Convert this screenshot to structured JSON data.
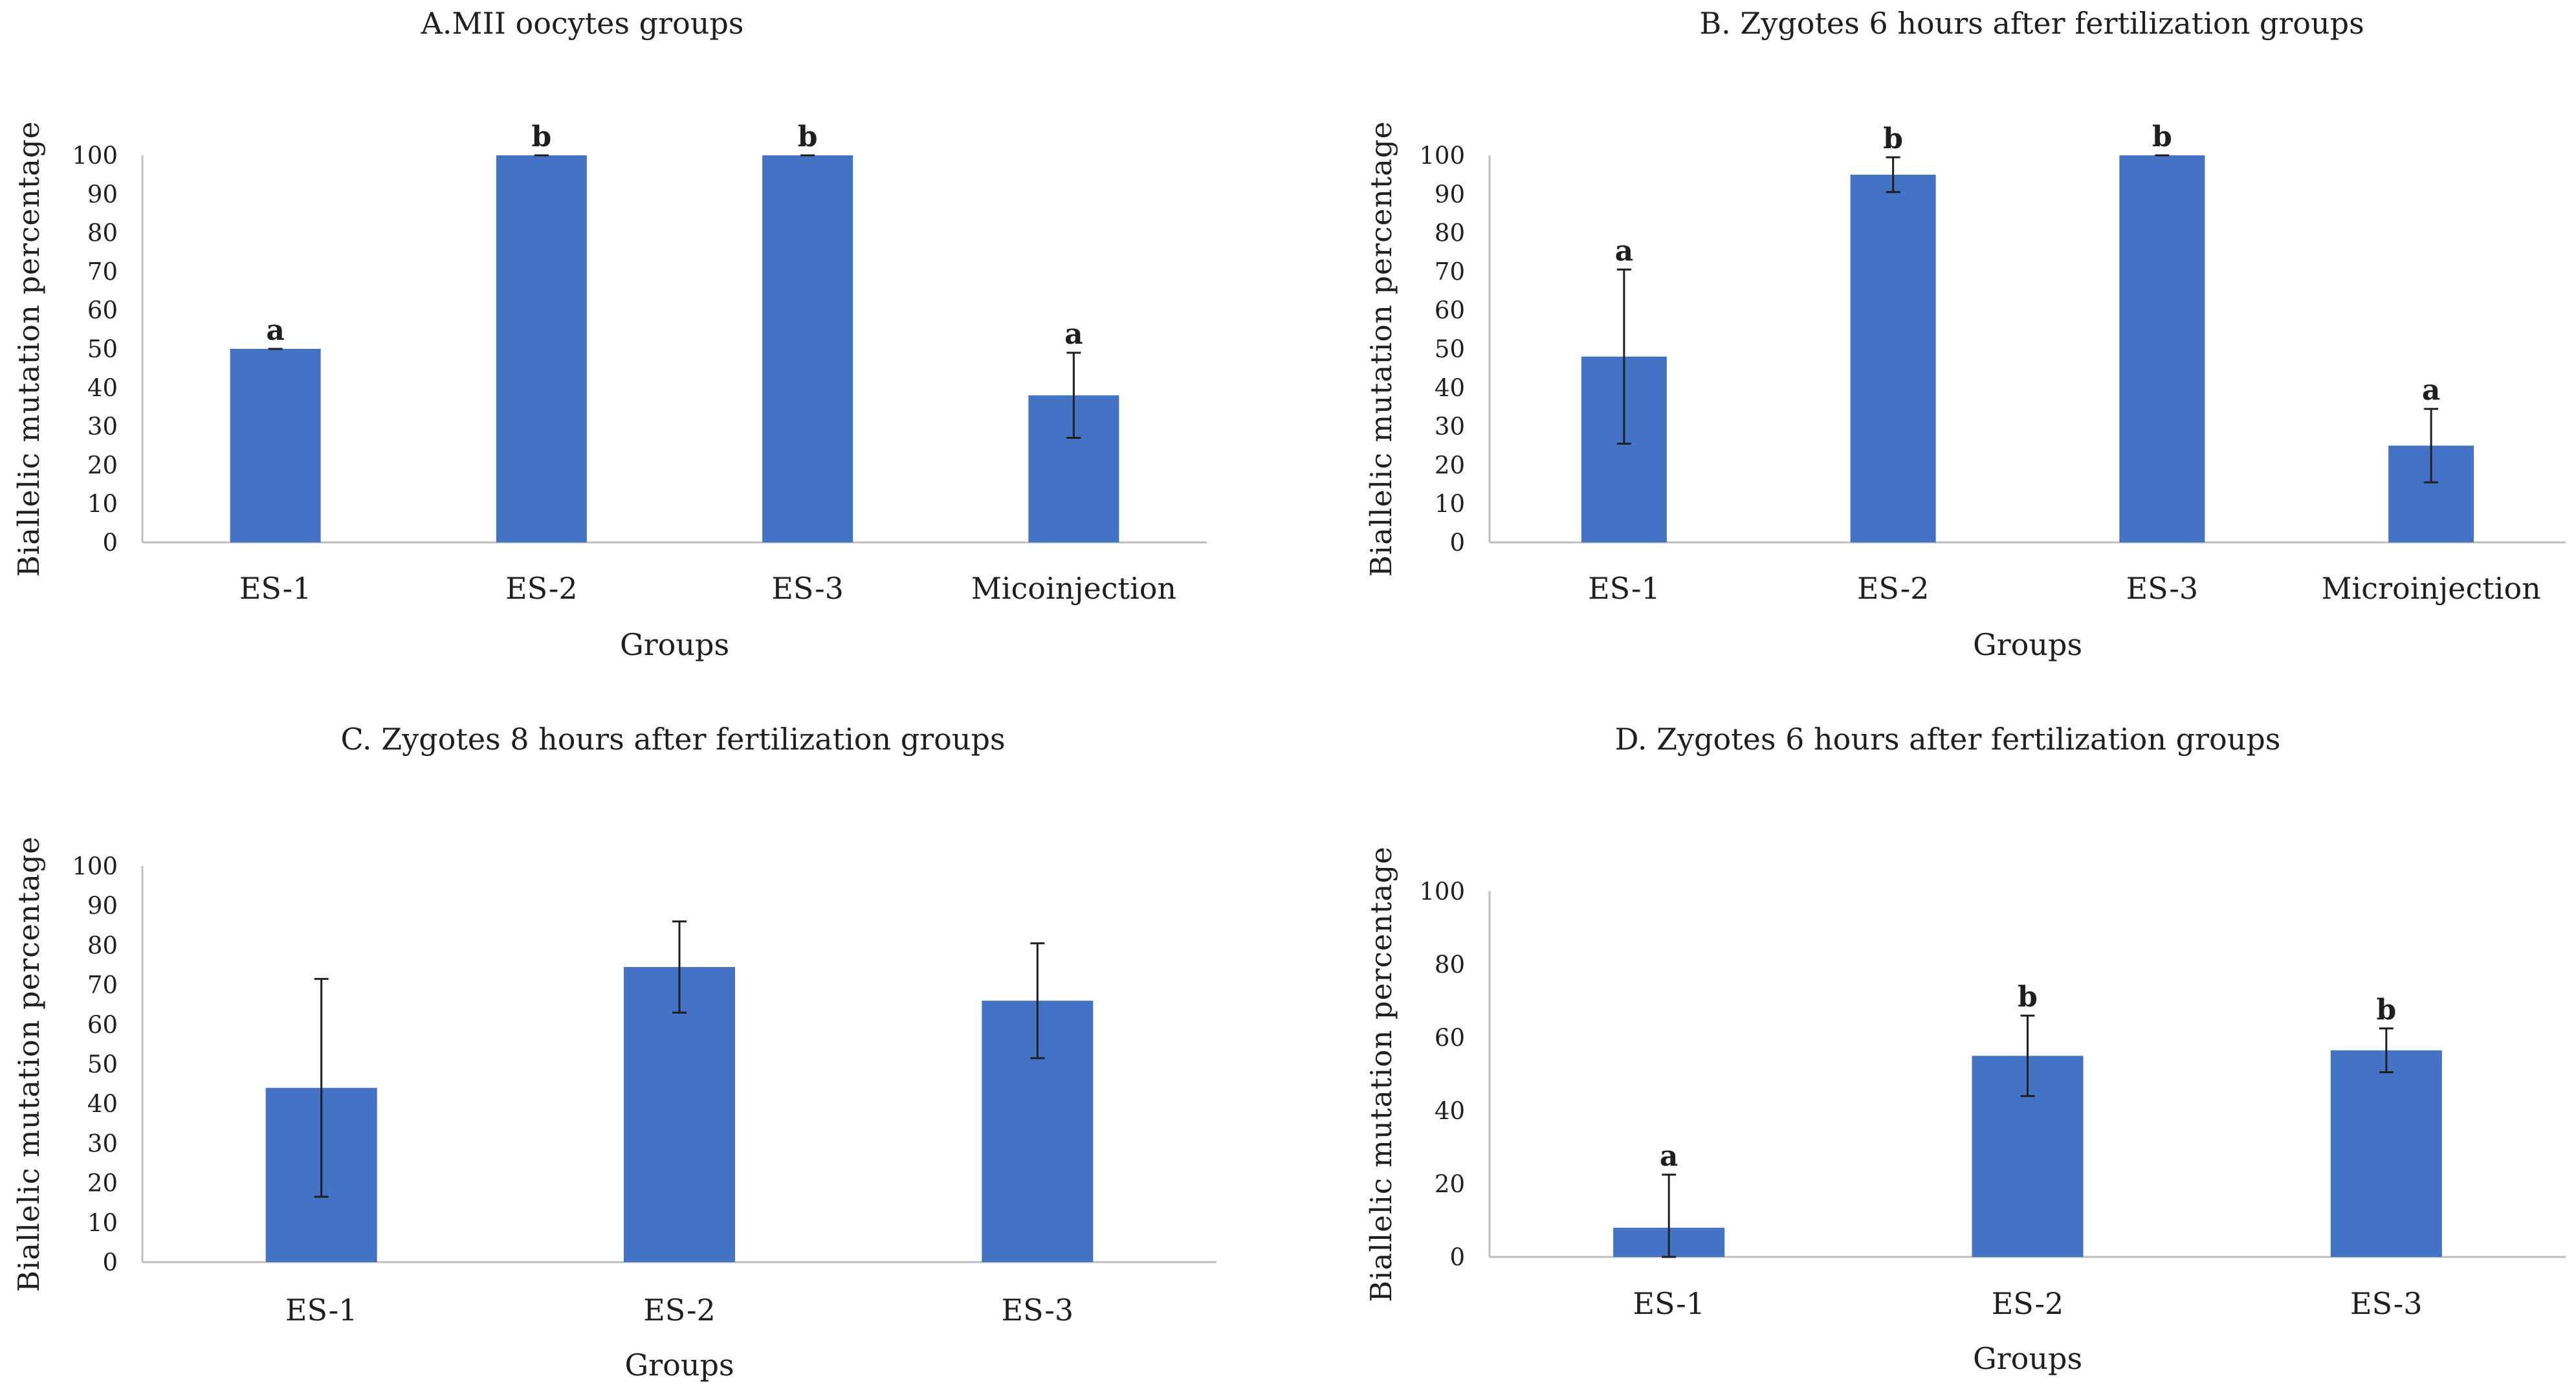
{
  "colors": {
    "bar": "#4472C4",
    "axis": "#BFBFBF",
    "error": "#1f1f1f",
    "text": "#1f1f1f"
  },
  "chart_data": [
    {
      "type": "bar",
      "title": "A.MII oocytes groups",
      "xlabel": "Groups",
      "ylabel": "Biallelic mutation percentage",
      "categories": [
        "ES-1",
        "ES-2",
        "ES-3",
        "Micoinjection"
      ],
      "values": [
        50,
        100,
        100,
        38
      ],
      "errors": [
        0,
        0,
        0,
        11
      ],
      "significance": [
        "a",
        "b",
        "b",
        "a"
      ],
      "ylim": [
        0,
        100
      ],
      "yticks": [
        0,
        10,
        20,
        30,
        40,
        50,
        60,
        70,
        80,
        90,
        100
      ]
    },
    {
      "type": "bar",
      "title": "B. Zygotes 6 hours  after fertilization groups",
      "xlabel": "Groups",
      "ylabel": "Biallelic mutation percentage",
      "categories": [
        "ES-1",
        "ES-2",
        "ES-3",
        "Microinjection"
      ],
      "values": [
        48,
        95,
        100,
        25
      ],
      "errors": [
        22.5,
        4.5,
        0,
        9.5
      ],
      "significance": [
        "a",
        "b",
        "b",
        "a"
      ],
      "ylim": [
        0,
        100
      ],
      "yticks": [
        0,
        10,
        20,
        30,
        40,
        50,
        60,
        70,
        80,
        90,
        100
      ]
    },
    {
      "type": "bar",
      "title": "C. Zygotes 8 hours  after fertilization groups",
      "xlabel": "Groups",
      "ylabel": "Biallelic mutation percentage",
      "categories": [
        "ES-1",
        "ES-2",
        "ES-3"
      ],
      "values": [
        44,
        74.5,
        66
      ],
      "errors": [
        27.5,
        11.5,
        14.5
      ],
      "significance": [
        "",
        "",
        ""
      ],
      "ylim": [
        0,
        100
      ],
      "yticks": [
        0,
        10,
        20,
        30,
        40,
        50,
        60,
        70,
        80,
        90,
        100
      ]
    },
    {
      "type": "bar",
      "title": "D. Zygotes 6 hours  after fertilization groups",
      "xlabel": "Groups",
      "ylabel": "Biallelic mutation percentage",
      "categories": [
        "ES-1",
        "ES-2",
        "ES-3"
      ],
      "values": [
        8,
        55,
        56.5
      ],
      "errors": [
        14.5,
        11,
        6
      ],
      "significance": [
        "a",
        "b",
        "b"
      ],
      "ylim": [
        0,
        100
      ],
      "yticks": [
        0,
        20,
        40,
        60,
        80,
        100
      ]
    }
  ]
}
